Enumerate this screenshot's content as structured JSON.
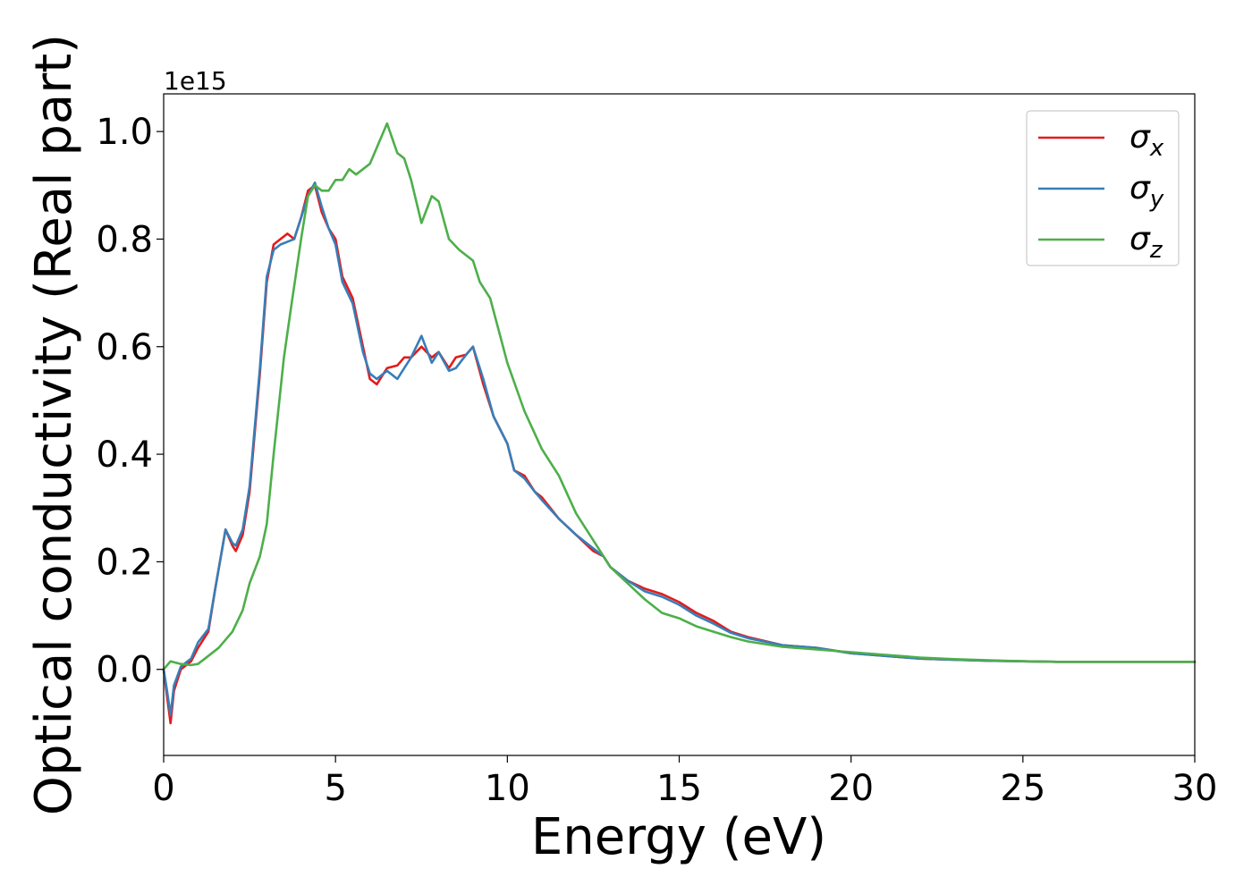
{
  "chart_data": {
    "type": "line",
    "xlabel": "Energy (eV)",
    "ylabel": "Optical conductivity (Real part)",
    "y_offset_text": "1e15",
    "xlim": [
      0,
      30
    ],
    "ylim": [
      -0.16,
      1.07
    ],
    "x_ticks": [
      0,
      5,
      10,
      15,
      20,
      25,
      30
    ],
    "x_tick_labels": [
      "0",
      "5",
      "10",
      "15",
      "20",
      "25",
      "30"
    ],
    "y_ticks": [
      0.0,
      0.2,
      0.4,
      0.6,
      0.8,
      1.0
    ],
    "y_tick_labels": [
      "0.0",
      "0.2",
      "0.4",
      "0.6",
      "0.8",
      "1.0"
    ],
    "grid": false,
    "legend_position": "top-right",
    "series": [
      {
        "name": "σx",
        "label_base": "σ",
        "label_sub": "x",
        "color": "#e41a1c",
        "x": [
          0,
          0.1,
          0.2,
          0.3,
          0.5,
          0.8,
          1.0,
          1.3,
          1.5,
          1.8,
          2.0,
          2.1,
          2.3,
          2.5,
          2.8,
          3.0,
          3.2,
          3.4,
          3.6,
          3.8,
          4.0,
          4.2,
          4.4,
          4.6,
          4.8,
          5.0,
          5.2,
          5.5,
          5.8,
          6.0,
          6.2,
          6.5,
          6.8,
          7.0,
          7.2,
          7.5,
          7.8,
          8.0,
          8.3,
          8.5,
          8.8,
          9.0,
          9.3,
          9.6,
          10.0,
          10.2,
          10.5,
          10.8,
          11.0,
          11.5,
          12.0,
          12.5,
          12.8,
          13.0,
          13.5,
          14.0,
          14.5,
          15.0,
          15.5,
          16.0,
          16.5,
          17.0,
          18.0,
          19.0,
          20.0,
          21.0,
          22.0,
          23.0,
          24.0,
          25.0,
          26.0,
          27.0,
          28.0,
          29.0,
          30.0
        ],
        "y": [
          0.0,
          -0.05,
          -0.1,
          -0.04,
          0.0,
          0.015,
          0.04,
          0.07,
          0.15,
          0.26,
          0.23,
          0.22,
          0.25,
          0.33,
          0.55,
          0.72,
          0.79,
          0.8,
          0.81,
          0.8,
          0.84,
          0.89,
          0.9,
          0.85,
          0.82,
          0.8,
          0.73,
          0.69,
          0.6,
          0.54,
          0.53,
          0.56,
          0.565,
          0.58,
          0.58,
          0.6,
          0.58,
          0.59,
          0.56,
          0.58,
          0.585,
          0.6,
          0.53,
          0.47,
          0.42,
          0.37,
          0.36,
          0.33,
          0.32,
          0.28,
          0.25,
          0.22,
          0.21,
          0.19,
          0.165,
          0.15,
          0.14,
          0.125,
          0.105,
          0.09,
          0.07,
          0.06,
          0.045,
          0.04,
          0.03,
          0.025,
          0.02,
          0.018,
          0.016,
          0.015,
          0.014,
          0.014,
          0.014,
          0.014,
          0.014
        ]
      },
      {
        "name": "σy",
        "label_base": "σ",
        "label_sub": "y",
        "color": "#377eb8",
        "x": [
          0,
          0.1,
          0.2,
          0.3,
          0.5,
          0.8,
          1.0,
          1.3,
          1.5,
          1.8,
          2.0,
          2.1,
          2.3,
          2.5,
          2.8,
          3.0,
          3.2,
          3.4,
          3.6,
          3.8,
          4.0,
          4.2,
          4.4,
          4.6,
          4.8,
          5.0,
          5.2,
          5.5,
          5.8,
          6.0,
          6.2,
          6.5,
          6.8,
          7.0,
          7.2,
          7.5,
          7.8,
          8.0,
          8.3,
          8.5,
          8.8,
          9.0,
          9.3,
          9.6,
          10.0,
          10.2,
          10.5,
          10.8,
          11.0,
          11.5,
          12.0,
          12.5,
          12.8,
          13.0,
          13.5,
          14.0,
          14.5,
          15.0,
          15.5,
          16.0,
          16.5,
          17.0,
          18.0,
          19.0,
          20.0,
          21.0,
          22.0,
          23.0,
          24.0,
          25.0,
          26.0,
          27.0,
          28.0,
          29.0,
          30.0
        ],
        "y": [
          0.0,
          -0.04,
          -0.085,
          -0.03,
          0.005,
          0.02,
          0.05,
          0.075,
          0.15,
          0.26,
          0.235,
          0.23,
          0.26,
          0.34,
          0.56,
          0.73,
          0.78,
          0.79,
          0.795,
          0.8,
          0.84,
          0.88,
          0.905,
          0.86,
          0.82,
          0.79,
          0.72,
          0.68,
          0.59,
          0.55,
          0.54,
          0.555,
          0.54,
          0.56,
          0.58,
          0.62,
          0.57,
          0.59,
          0.555,
          0.56,
          0.585,
          0.6,
          0.54,
          0.47,
          0.42,
          0.37,
          0.355,
          0.33,
          0.315,
          0.28,
          0.25,
          0.225,
          0.21,
          0.19,
          0.165,
          0.145,
          0.135,
          0.12,
          0.1,
          0.085,
          0.068,
          0.058,
          0.045,
          0.04,
          0.03,
          0.025,
          0.02,
          0.018,
          0.016,
          0.015,
          0.014,
          0.014,
          0.014,
          0.014,
          0.014
        ]
      },
      {
        "name": "σz",
        "label_base": "σ",
        "label_sub": "z",
        "color": "#4daf4a",
        "x": [
          0,
          0.2,
          0.5,
          0.8,
          1.0,
          1.3,
          1.6,
          2.0,
          2.3,
          2.5,
          2.8,
          3.0,
          3.2,
          3.5,
          3.7,
          4.0,
          4.2,
          4.4,
          4.6,
          4.8,
          5.0,
          5.2,
          5.4,
          5.6,
          5.8,
          6.0,
          6.2,
          6.5,
          6.8,
          7.0,
          7.2,
          7.5,
          7.8,
          8.0,
          8.3,
          8.6,
          8.8,
          9.0,
          9.2,
          9.5,
          10.0,
          10.5,
          11.0,
          11.5,
          12.0,
          12.5,
          13.0,
          13.5,
          14.0,
          14.5,
          15.0,
          15.5,
          16.0,
          16.5,
          17.0,
          18.0,
          19.0,
          20.0,
          21.0,
          22.0,
          23.0,
          24.0,
          25.0,
          26.0,
          27.0,
          28.0,
          29.0,
          30.0
        ],
        "y": [
          0.0,
          0.015,
          0.01,
          0.008,
          0.01,
          0.025,
          0.04,
          0.07,
          0.11,
          0.16,
          0.21,
          0.27,
          0.4,
          0.58,
          0.67,
          0.8,
          0.88,
          0.9,
          0.89,
          0.89,
          0.91,
          0.91,
          0.93,
          0.92,
          0.93,
          0.94,
          0.97,
          1.015,
          0.96,
          0.95,
          0.91,
          0.83,
          0.88,
          0.87,
          0.8,
          0.78,
          0.77,
          0.76,
          0.72,
          0.69,
          0.57,
          0.48,
          0.41,
          0.36,
          0.29,
          0.24,
          0.19,
          0.16,
          0.13,
          0.105,
          0.095,
          0.08,
          0.07,
          0.06,
          0.052,
          0.042,
          0.037,
          0.032,
          0.027,
          0.022,
          0.019,
          0.017,
          0.015,
          0.014,
          0.014,
          0.014,
          0.014,
          0.014
        ]
      }
    ]
  }
}
